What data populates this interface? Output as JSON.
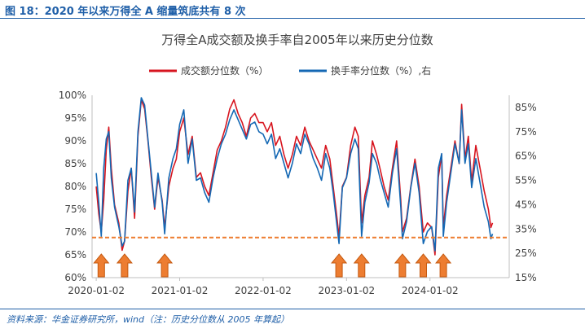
{
  "figure_caption": "图 18：2020 年以来万得全 A 缩量筑底共有 8 次",
  "source_note": "资料来源：华金证券研究所，wind（注：历史分位数从 2005 年算起）",
  "colors": {
    "red": "#d7151f",
    "blue": "#1468b4",
    "threshold": "#ed7d31",
    "arrow_fill": "#ed7d31",
    "arrow_stroke": "#c55a11"
  },
  "chart_data": {
    "type": "line",
    "title": "万得全A成交额及换手率自2005年以来历史分位数",
    "legend": [
      "成交额分位数（%）",
      "换手率分位数（%）,右"
    ],
    "x_tick_labels": [
      "2020-01-02",
      "2021-01-02",
      "2022-01-02",
      "2023-01-02",
      "2024-01-02"
    ],
    "x_range": [
      2019.95,
      2024.95
    ],
    "y_left": {
      "range": [
        60,
        100
      ],
      "ticks": [
        "60%",
        "65%",
        "70%",
        "75%",
        "80%",
        "85%",
        "90%",
        "95%",
        "100%"
      ]
    },
    "y_right": {
      "range": [
        15,
        90
      ],
      "ticks": [
        "15%",
        "25%",
        "35%",
        "45%",
        "55%",
        "65%",
        "75%",
        "85%"
      ]
    },
    "threshold_left": 68.8,
    "arrow_dates": [
      2020.06,
      2020.34,
      2020.82,
      2022.91,
      2023.18,
      2023.67,
      2023.92,
      2024.16
    ],
    "series": [
      {
        "name": "成交额分位数（%）",
        "axis": "left",
        "points": [
          [
            2020.0,
            80
          ],
          [
            2020.03,
            74
          ],
          [
            2020.06,
            70
          ],
          [
            2020.09,
            77
          ],
          [
            2020.12,
            88
          ],
          [
            2020.15,
            93
          ],
          [
            2020.18,
            84
          ],
          [
            2020.22,
            76
          ],
          [
            2020.27,
            72
          ],
          [
            2020.31,
            66
          ],
          [
            2020.34,
            68
          ],
          [
            2020.38,
            79
          ],
          [
            2020.42,
            84
          ],
          [
            2020.46,
            73
          ],
          [
            2020.5,
            91
          ],
          [
            2020.54,
            99
          ],
          [
            2020.58,
            97
          ],
          [
            2020.62,
            90
          ],
          [
            2020.66,
            82
          ],
          [
            2020.7,
            75
          ],
          [
            2020.74,
            82
          ],
          [
            2020.79,
            77
          ],
          [
            2020.82,
            71
          ],
          [
            2020.87,
            80
          ],
          [
            2020.92,
            84
          ],
          [
            2020.96,
            86
          ],
          [
            2021.0,
            92
          ],
          [
            2021.05,
            95
          ],
          [
            2021.1,
            87
          ],
          [
            2021.15,
            91
          ],
          [
            2021.2,
            82
          ],
          [
            2021.25,
            83
          ],
          [
            2021.3,
            80
          ],
          [
            2021.35,
            78
          ],
          [
            2021.4,
            83
          ],
          [
            2021.45,
            88
          ],
          [
            2021.5,
            90
          ],
          [
            2021.55,
            93
          ],
          [
            2021.6,
            97
          ],
          [
            2021.65,
            99
          ],
          [
            2021.7,
            96
          ],
          [
            2021.75,
            94
          ],
          [
            2021.8,
            91
          ],
          [
            2021.85,
            95
          ],
          [
            2021.9,
            96
          ],
          [
            2021.95,
            94
          ],
          [
            2022.0,
            94
          ],
          [
            2022.05,
            92
          ],
          [
            2022.1,
            94
          ],
          [
            2022.15,
            89
          ],
          [
            2022.2,
            91
          ],
          [
            2022.25,
            87
          ],
          [
            2022.3,
            84
          ],
          [
            2022.35,
            87
          ],
          [
            2022.4,
            91
          ],
          [
            2022.45,
            89
          ],
          [
            2022.5,
            93
          ],
          [
            2022.55,
            90
          ],
          [
            2022.6,
            88
          ],
          [
            2022.65,
            86
          ],
          [
            2022.7,
            84
          ],
          [
            2022.75,
            89
          ],
          [
            2022.8,
            86
          ],
          [
            2022.84,
            80
          ],
          [
            2022.88,
            74
          ],
          [
            2022.91,
            69
          ],
          [
            2022.95,
            80
          ],
          [
            2023.0,
            82
          ],
          [
            2023.05,
            89
          ],
          [
            2023.1,
            93
          ],
          [
            2023.14,
            91
          ],
          [
            2023.18,
            72
          ],
          [
            2023.22,
            78
          ],
          [
            2023.27,
            82
          ],
          [
            2023.31,
            90
          ],
          [
            2023.36,
            87
          ],
          [
            2023.4,
            84
          ],
          [
            2023.45,
            80
          ],
          [
            2023.5,
            77
          ],
          [
            2023.55,
            84
          ],
          [
            2023.6,
            90
          ],
          [
            2023.65,
            77
          ],
          [
            2023.67,
            70
          ],
          [
            2023.72,
            73
          ],
          [
            2023.77,
            80
          ],
          [
            2023.82,
            86
          ],
          [
            2023.87,
            80
          ],
          [
            2023.92,
            70
          ],
          [
            2023.97,
            72
          ],
          [
            2024.02,
            71
          ],
          [
            2024.06,
            65
          ],
          [
            2024.1,
            82
          ],
          [
            2024.14,
            87
          ],
          [
            2024.16,
            71
          ],
          [
            2024.2,
            78
          ],
          [
            2024.25,
            84
          ],
          [
            2024.3,
            90
          ],
          [
            2024.35,
            85
          ],
          [
            2024.38,
            98
          ],
          [
            2024.42,
            86
          ],
          [
            2024.46,
            91
          ],
          [
            2024.5,
            81
          ],
          [
            2024.55,
            89
          ],
          [
            2024.6,
            84
          ],
          [
            2024.65,
            79
          ],
          [
            2024.7,
            75
          ],
          [
            2024.73,
            71
          ],
          [
            2024.75,
            72
          ]
        ]
      },
      {
        "name": "换手率分位数（%）,右",
        "axis": "right",
        "points": [
          [
            2020.0,
            58
          ],
          [
            2020.03,
            46
          ],
          [
            2020.06,
            32
          ],
          [
            2020.09,
            60
          ],
          [
            2020.12,
            72
          ],
          [
            2020.15,
            75
          ],
          [
            2020.18,
            56
          ],
          [
            2020.22,
            44
          ],
          [
            2020.27,
            36
          ],
          [
            2020.31,
            28
          ],
          [
            2020.34,
            30
          ],
          [
            2020.38,
            55
          ],
          [
            2020.42,
            60
          ],
          [
            2020.46,
            42
          ],
          [
            2020.5,
            75
          ],
          [
            2020.54,
            89
          ],
          [
            2020.58,
            86
          ],
          [
            2020.62,
            72
          ],
          [
            2020.66,
            58
          ],
          [
            2020.7,
            44
          ],
          [
            2020.74,
            58
          ],
          [
            2020.79,
            46
          ],
          [
            2020.82,
            33
          ],
          [
            2020.87,
            56
          ],
          [
            2020.92,
            64
          ],
          [
            2020.96,
            68
          ],
          [
            2021.0,
            78
          ],
          [
            2021.05,
            84
          ],
          [
            2021.1,
            62
          ],
          [
            2021.15,
            72
          ],
          [
            2021.2,
            55
          ],
          [
            2021.25,
            56
          ],
          [
            2021.3,
            50
          ],
          [
            2021.35,
            46
          ],
          [
            2021.4,
            56
          ],
          [
            2021.45,
            64
          ],
          [
            2021.5,
            70
          ],
          [
            2021.55,
            74
          ],
          [
            2021.6,
            80
          ],
          [
            2021.65,
            84
          ],
          [
            2021.7,
            80
          ],
          [
            2021.75,
            76
          ],
          [
            2021.8,
            72
          ],
          [
            2021.85,
            78
          ],
          [
            2021.9,
            79
          ],
          [
            2021.95,
            75
          ],
          [
            2022.0,
            74
          ],
          [
            2022.05,
            70
          ],
          [
            2022.1,
            74
          ],
          [
            2022.15,
            64
          ],
          [
            2022.2,
            68
          ],
          [
            2022.25,
            62
          ],
          [
            2022.3,
            56
          ],
          [
            2022.35,
            62
          ],
          [
            2022.4,
            70
          ],
          [
            2022.45,
            66
          ],
          [
            2022.5,
            74
          ],
          [
            2022.55,
            70
          ],
          [
            2022.6,
            64
          ],
          [
            2022.65,
            60
          ],
          [
            2022.7,
            55
          ],
          [
            2022.75,
            66
          ],
          [
            2022.8,
            60
          ],
          [
            2022.84,
            50
          ],
          [
            2022.88,
            38
          ],
          [
            2022.91,
            29
          ],
          [
            2022.95,
            52
          ],
          [
            2023.0,
            56
          ],
          [
            2023.05,
            66
          ],
          [
            2023.1,
            72
          ],
          [
            2023.14,
            68
          ],
          [
            2023.18,
            32
          ],
          [
            2023.22,
            46
          ],
          [
            2023.27,
            54
          ],
          [
            2023.31,
            66
          ],
          [
            2023.36,
            62
          ],
          [
            2023.4,
            56
          ],
          [
            2023.45,
            50
          ],
          [
            2023.5,
            44
          ],
          [
            2023.55,
            58
          ],
          [
            2023.6,
            68
          ],
          [
            2023.65,
            44
          ],
          [
            2023.67,
            31
          ],
          [
            2023.72,
            38
          ],
          [
            2023.77,
            52
          ],
          [
            2023.82,
            62
          ],
          [
            2023.87,
            50
          ],
          [
            2023.92,
            29
          ],
          [
            2023.97,
            34
          ],
          [
            2024.02,
            36
          ],
          [
            2024.06,
            26
          ],
          [
            2024.1,
            60
          ],
          [
            2024.14,
            66
          ],
          [
            2024.16,
            32
          ],
          [
            2024.2,
            46
          ],
          [
            2024.25,
            58
          ],
          [
            2024.3,
            70
          ],
          [
            2024.35,
            62
          ],
          [
            2024.38,
            84
          ],
          [
            2024.42,
            62
          ],
          [
            2024.46,
            70
          ],
          [
            2024.5,
            52
          ],
          [
            2024.55,
            64
          ],
          [
            2024.6,
            54
          ],
          [
            2024.65,
            44
          ],
          [
            2024.7,
            38
          ],
          [
            2024.73,
            31
          ],
          [
            2024.75,
            33
          ]
        ]
      }
    ]
  }
}
